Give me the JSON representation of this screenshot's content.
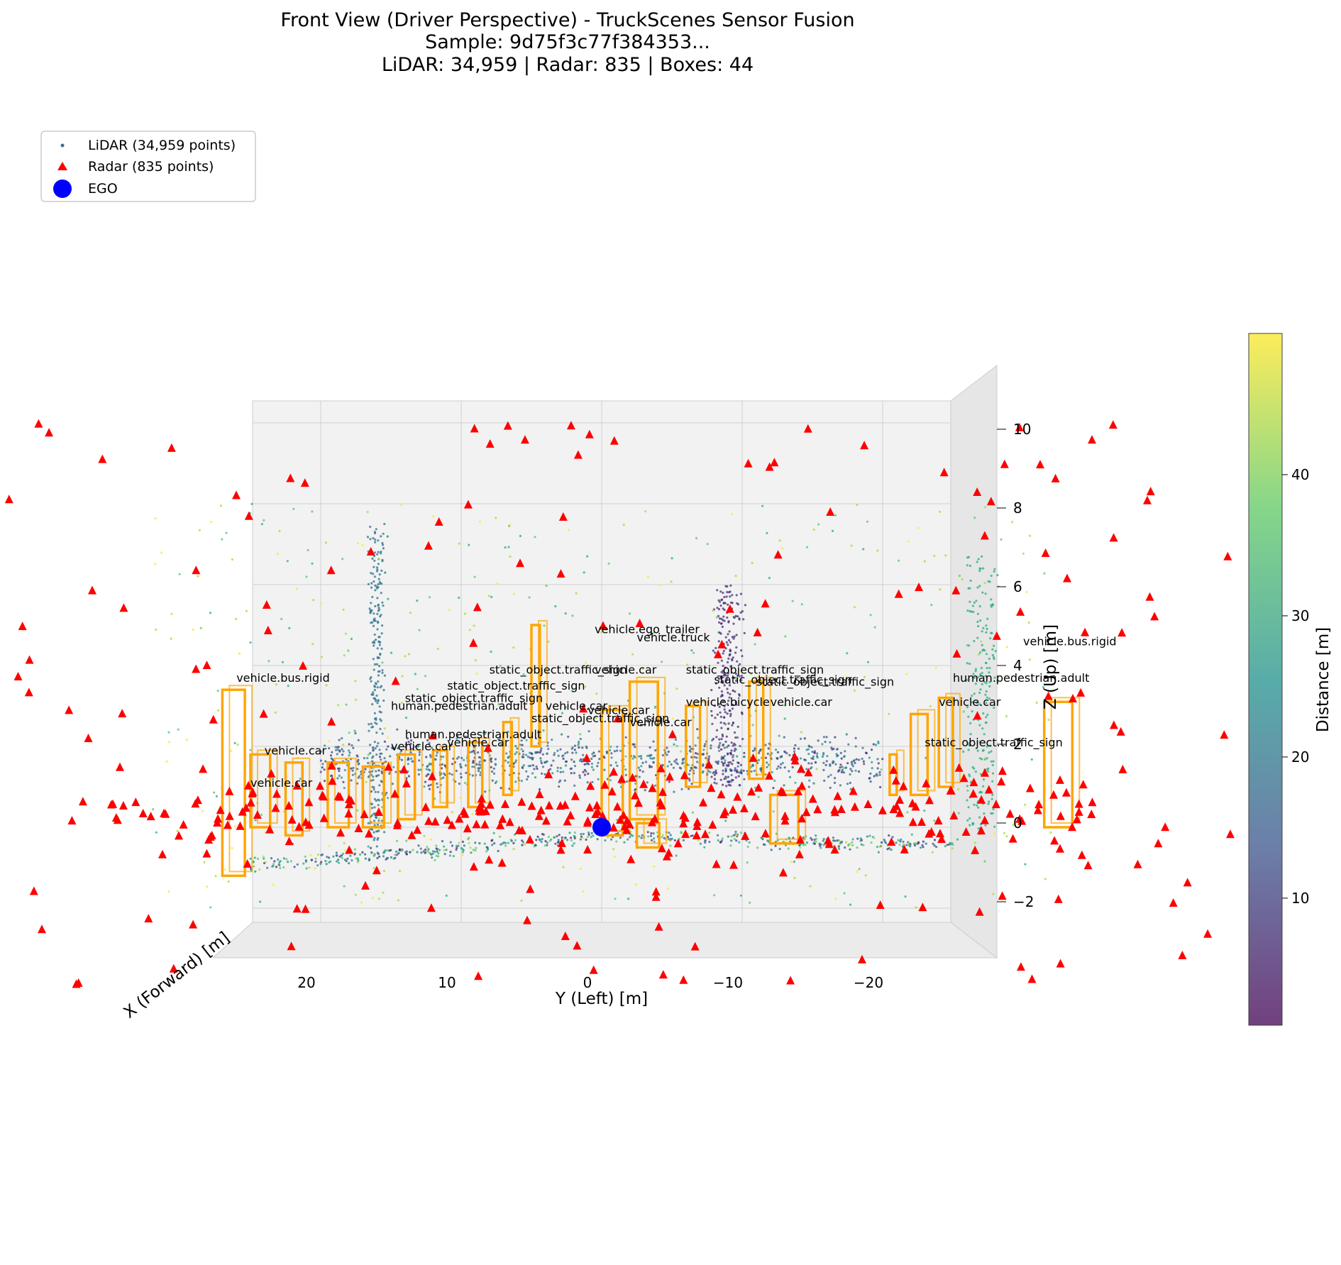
{
  "chart_data": {
    "type": "scatter",
    "projection": "3d",
    "title": "Front View (Driver Perspective) - TruckScenes Sensor Fusion",
    "subtitle_lines": [
      "Sample: 9d75f3c77f384353...",
      "LiDAR: 34,959 | Radar: 835 | Boxes: 44"
    ],
    "xlabel": "X (Forward) [m]",
    "ylabel": "Y (Left) [m]",
    "zlabel": "Z (Up) [m]",
    "y_ticks": [
      20,
      10,
      0,
      -10,
      -20
    ],
    "y_tick_labels": [
      "20",
      "10",
      "0",
      "−10",
      "−20"
    ],
    "z_ticks": [
      -2,
      0,
      2,
      4,
      6,
      8,
      10
    ],
    "z_tick_labels": [
      "−2",
      "0",
      "2",
      "4",
      "6",
      "8",
      "10"
    ],
    "ylim": [
      25,
      -25
    ],
    "zlim": [
      -3,
      10
    ],
    "grid": true,
    "legend_position": "top-left",
    "legend": [
      {
        "name": "LiDAR (34,959 points)",
        "marker": "dot",
        "color": "#3b6d8f"
      },
      {
        "name": "Radar (835 points)",
        "marker": "triangle",
        "color": "#ff0000"
      },
      {
        "name": "EGO",
        "marker": "circle",
        "color": "#0000ff"
      }
    ],
    "colorbar": {
      "label": "Distance [m]",
      "ticks": [
        10,
        20,
        30,
        40
      ],
      "range": [
        1,
        50
      ],
      "colormap": "viridis"
    },
    "counts": {
      "lidar": 34959,
      "radar": 835,
      "boxes": 44
    },
    "ego": {
      "y": 0,
      "z": 0
    },
    "box_labels": [
      {
        "text": "vehicle.bus.rigid",
        "y": 26,
        "z": 3.6
      },
      {
        "text": "vehicle.bus.rigid",
        "y": -30,
        "z": 4.5
      },
      {
        "text": "vehicle.ego_trailer",
        "y": 0.5,
        "z": 4.8
      },
      {
        "text": "vehicle.truck",
        "y": -2.5,
        "z": 4.6
      },
      {
        "text": "vehicle.car",
        "y": 0.5,
        "z": 3.8
      },
      {
        "text": "static_object.traffic_sign",
        "y": 8,
        "z": 3.8
      },
      {
        "text": "static_object.traffic_sign",
        "y": -6,
        "z": 3.8
      },
      {
        "text": "static_object.traffic_sign",
        "y": -8,
        "z": 3.55
      },
      {
        "text": "static_object.traffic_sign",
        "y": -11,
        "z": 3.5
      },
      {
        "text": "static_object.traffic_sign",
        "y": 11,
        "z": 3.4
      },
      {
        "text": "static_object.traffic_sign",
        "y": 14,
        "z": 3.1
      },
      {
        "text": "static_object.traffic_sign",
        "y": 5,
        "z": 2.6
      },
      {
        "text": "static_object.traffic_sign",
        "y": -23,
        "z": 2.0
      },
      {
        "text": "human.pedestrian.adult",
        "y": 15,
        "z": 2.9
      },
      {
        "text": "human.pedestrian.adult",
        "y": 14,
        "z": 2.2
      },
      {
        "text": "human.pedestrian.adult",
        "y": -25,
        "z": 3.6
      },
      {
        "text": "vehicle.car",
        "y": 24,
        "z": 1.8
      },
      {
        "text": "vehicle.car",
        "y": 25,
        "z": 1.0
      },
      {
        "text": "vehicle.car",
        "y": 15,
        "z": 1.9
      },
      {
        "text": "vehicle.car",
        "y": 11,
        "z": 2.0
      },
      {
        "text": "vehicle.car",
        "y": 4,
        "z": 2.9
      },
      {
        "text": "vehicle.car",
        "y": 1,
        "z": 2.8
      },
      {
        "text": "vehicle.car",
        "y": -2,
        "z": 2.5
      },
      {
        "text": "vehicle.car",
        "y": -12,
        "z": 3.0
      },
      {
        "text": "vehicle.car",
        "y": -24,
        "z": 3.0
      },
      {
        "text": "vehicle.bicycle",
        "y": -6,
        "z": 3.0
      }
    ]
  }
}
